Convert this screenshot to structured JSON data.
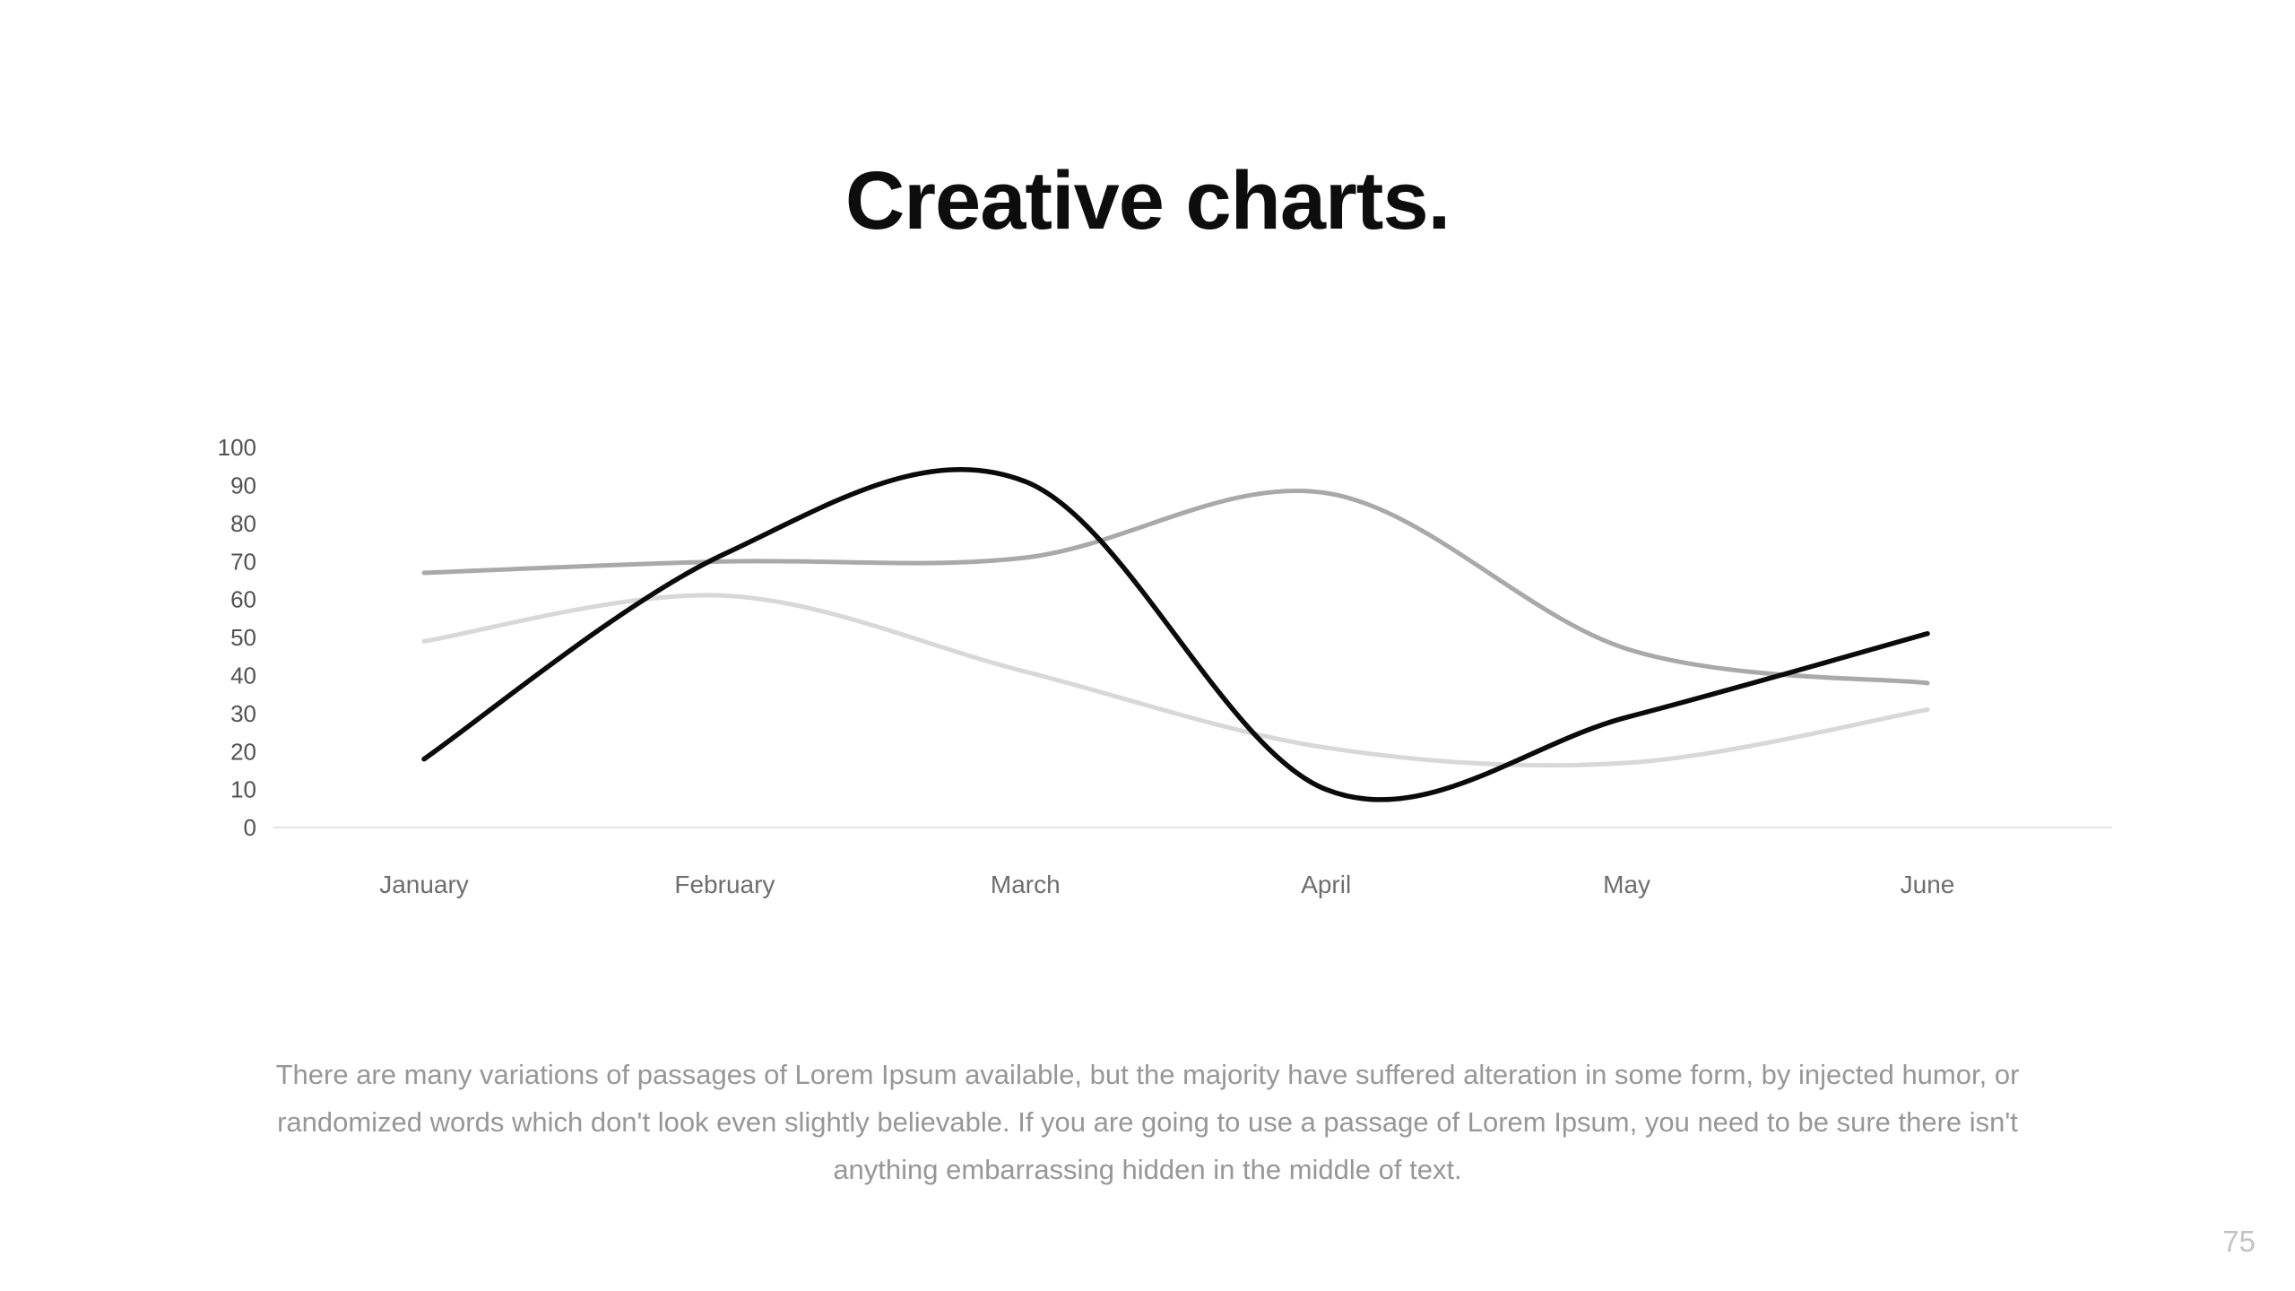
{
  "slide": {
    "title": "Creative charts.",
    "page_number": "75",
    "description_lines": [
      "There are many variations of passages of Lorem Ipsum available, but the majority have suffered alteration in some form, by injected humor, or",
      "randomized words which don't look even slightly believable. If you are going to use a passage of Lorem Ipsum, you need to be sure there isn't",
      "anything embarrassing hidden in the middle of text."
    ]
  },
  "chart_data": {
    "type": "line",
    "title": "",
    "xlabel": "",
    "ylabel": "",
    "categories": [
      "January",
      "February",
      "March",
      "April",
      "May",
      "June"
    ],
    "series": [
      {
        "name": "series-black",
        "color": "#0a0a0a",
        "width": 5.5,
        "values": [
          18,
          72,
          91,
          10,
          29,
          51
        ]
      },
      {
        "name": "series-gray",
        "color": "#a9a9a9",
        "width": 5,
        "values": [
          67,
          70,
          71,
          88,
          47,
          38
        ]
      },
      {
        "name": "series-light-gray",
        "color": "#d8d8d8",
        "width": 5,
        "values": [
          49,
          61,
          41,
          21,
          17,
          31
        ]
      }
    ],
    "yticks": [
      0,
      10,
      20,
      30,
      40,
      50,
      60,
      70,
      80,
      90,
      100
    ],
    "ylim": [
      0,
      100
    ],
    "grid": "baseline-only",
    "legend": "none",
    "curve": "smooth",
    "axis_line_color": "#e4e4e4",
    "ytick_label_color": "#525252",
    "xtick_label_color": "#6e6e6e"
  }
}
